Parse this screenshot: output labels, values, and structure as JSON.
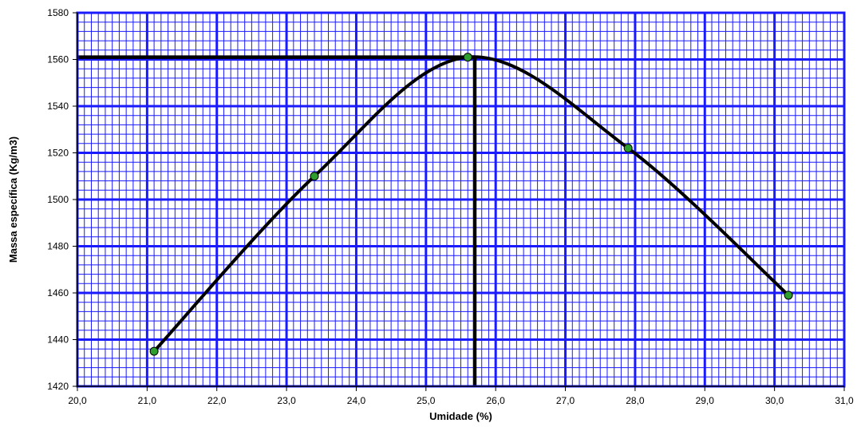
{
  "chart_data": {
    "type": "line",
    "title": "",
    "xlabel": "Umidade (%)",
    "ylabel": "Massa específica (Kg/m3)",
    "xlim": [
      20.0,
      31.0
    ],
    "ylim": [
      1420,
      1580
    ],
    "x_ticks": [
      "20,0",
      "21,0",
      "22,0",
      "23,0",
      "24,0",
      "25,0",
      "26,0",
      "27,0",
      "28,0",
      "29,0",
      "30,0",
      "31,0"
    ],
    "x_tick_values": [
      20,
      21,
      22,
      23,
      24,
      25,
      26,
      27,
      28,
      29,
      30,
      31
    ],
    "y_ticks": [
      "1420",
      "1440",
      "1460",
      "1480",
      "1500",
      "1520",
      "1540",
      "1560",
      "1580"
    ],
    "y_tick_values": [
      1420,
      1440,
      1460,
      1480,
      1500,
      1520,
      1540,
      1560,
      1580
    ],
    "grid": true,
    "series": [
      {
        "points": [
          {
            "x": 21.1,
            "y": 1435
          },
          {
            "x": 23.4,
            "y": 1510
          },
          {
            "x": 25.6,
            "y": 1561
          },
          {
            "x": 27.9,
            "y": 1522
          },
          {
            "x": 30.2,
            "y": 1459
          }
        ],
        "smooth": true,
        "line_color": "#000000",
        "marker_color": "#2e9e2e"
      }
    ],
    "reference_lines": {
      "optimum_moisture": 25.7,
      "max_density": 1561
    },
    "colors": {
      "major_grid": "#1a1aff",
      "minor_grid": "#1a1aff",
      "axis": "#000000"
    }
  }
}
